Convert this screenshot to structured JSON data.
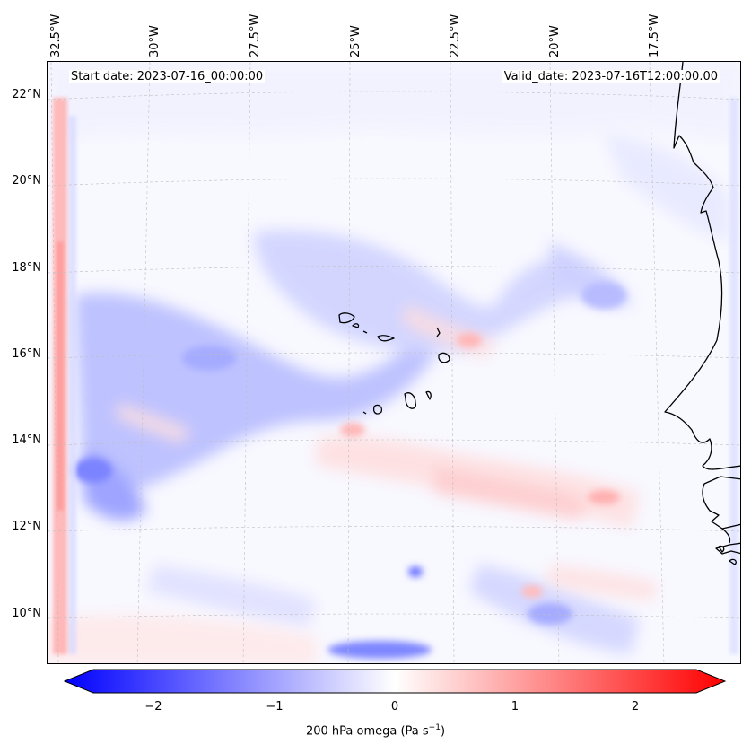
{
  "map": {
    "header_left": "Start date: 2023-07-16_00:00:00",
    "header_right": "Valid_date: 2023-07-16T12:00:00.00",
    "longitude_labels": [
      "32.5°W",
      "30°W",
      "27.5°W",
      "25°W",
      "22.5°W",
      "20°W",
      "17.5°W"
    ],
    "latitude_labels": [
      "22°N",
      "20°N",
      "18°N",
      "16°N",
      "14°N",
      "12°N",
      "10°N"
    ],
    "field": "200 hPa omega",
    "colors": {
      "negative": "#0000ff",
      "zero": "#ffffff",
      "positive": "#ff0000",
      "coast": "#000000"
    }
  },
  "colorbar": {
    "ticks": [
      "−2",
      "−1",
      "0",
      "1",
      "2"
    ],
    "label": "200 hPa omega (Pa s",
    "label_sup": "−1",
    "label_end": ")",
    "range": [
      -2.6,
      2.6
    ]
  }
}
